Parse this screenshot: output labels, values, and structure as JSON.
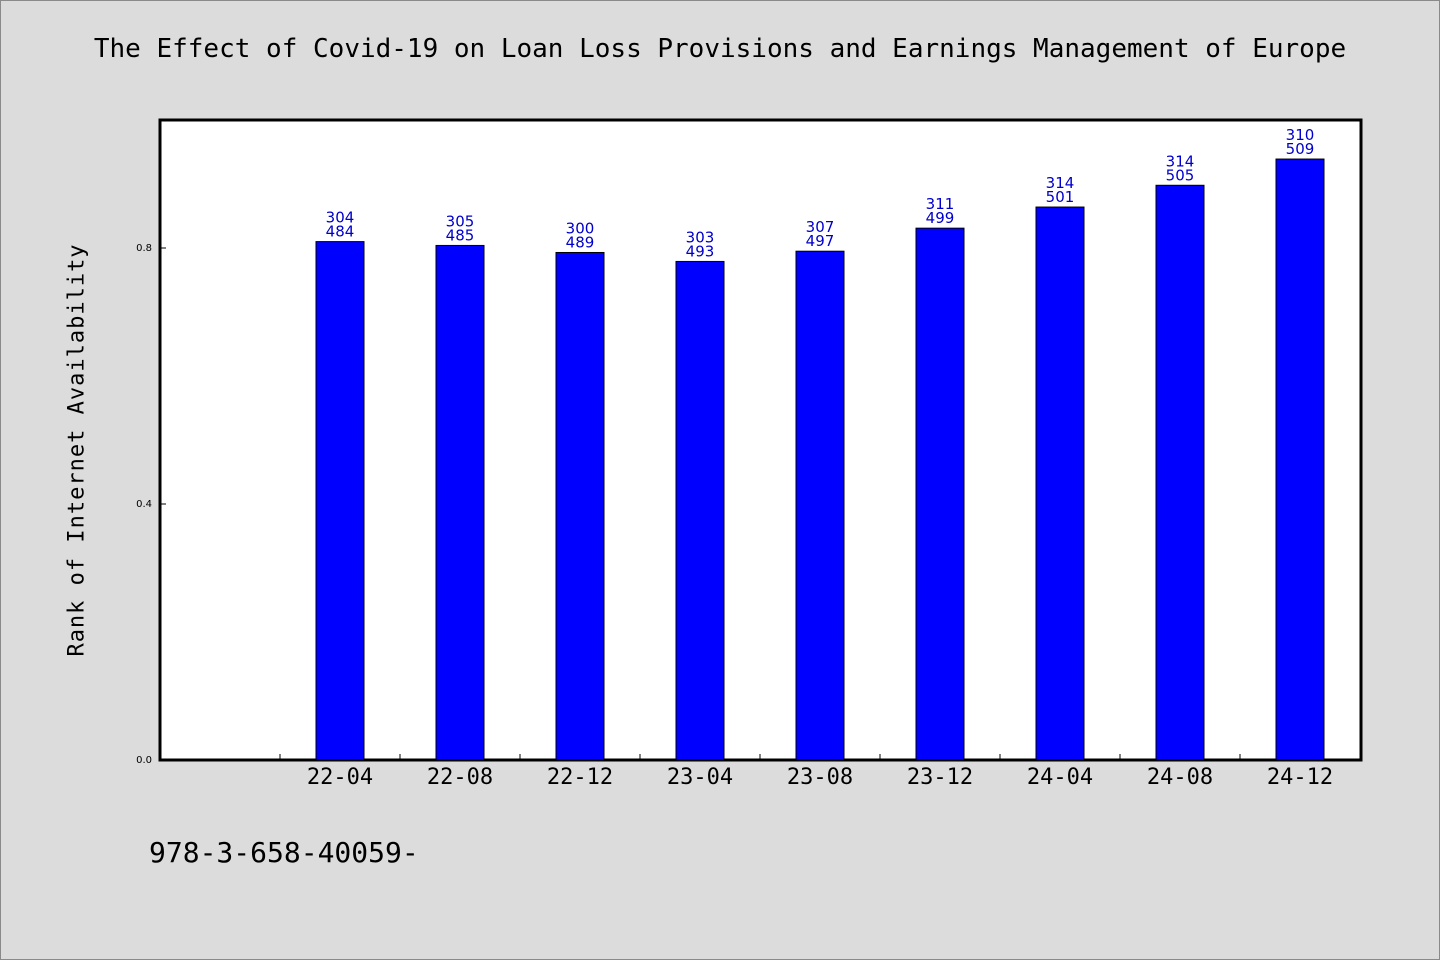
{
  "chart_data": {
    "type": "bar",
    "title": "The Effect of Covid-19 on Loan Loss Provisions and Earnings Management of Europe",
    "ylabel": "Rank of Internet Availability",
    "xlabel": "",
    "categories": [
      "22-04",
      "22-08",
      "22-12",
      "23-04",
      "23-08",
      "23-12",
      "24-04",
      "24-08",
      "24-12"
    ],
    "values": [
      0.81,
      0.804,
      0.793,
      0.779,
      0.795,
      0.831,
      0.864,
      0.898,
      0.939
    ],
    "annotations": [
      [
        "304",
        "484"
      ],
      [
        "305",
        "485"
      ],
      [
        "300",
        "489"
      ],
      [
        "303",
        "493"
      ],
      [
        "307",
        "497"
      ],
      [
        "311",
        "499"
      ],
      [
        "314",
        "501"
      ],
      [
        "314",
        "505"
      ],
      [
        "310",
        "509"
      ]
    ],
    "yticks": [
      "0.0",
      "0.4",
      "0.8"
    ],
    "ylim": [
      0,
      1.0
    ],
    "grid": false,
    "colors": {
      "bar": "#0000ff",
      "annotation": "#0000cc",
      "plot_background": "#ffffff",
      "page_background": "#dcdcdc"
    }
  },
  "footer": {
    "code": "978-3-658-40059-"
  }
}
